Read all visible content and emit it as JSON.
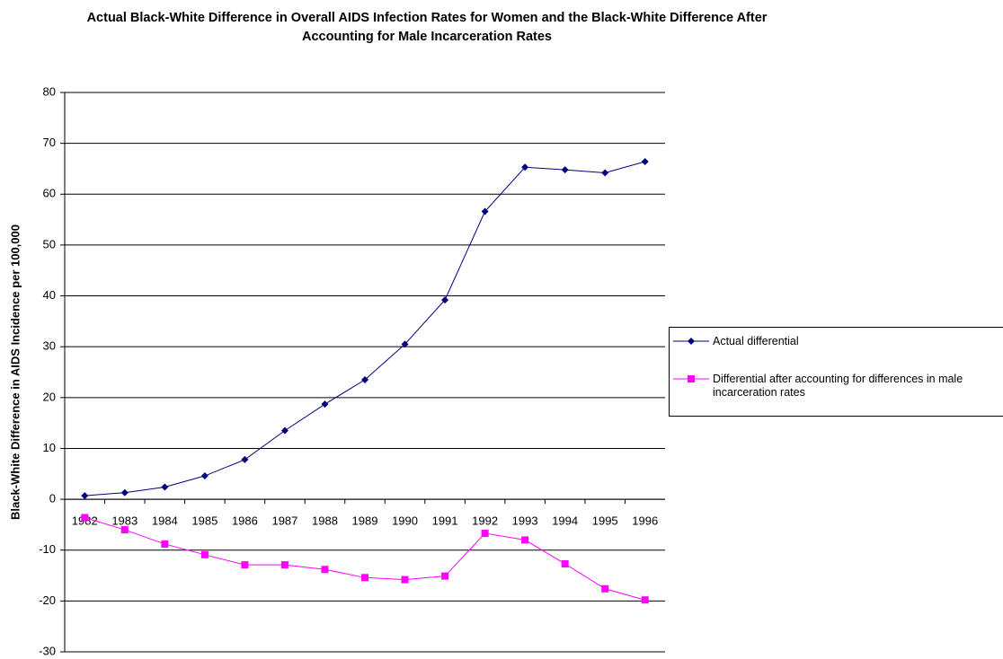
{
  "chart_data": {
    "type": "line",
    "title": "Actual Black-White Difference in Overall AIDS Infection Rates for Women and the Black-White Difference After Accounting for Male Incarceration Rates",
    "y_label": "Black-White Difference in AIDS Incidence per 100,000",
    "categories": [
      "1982",
      "1983",
      "1984",
      "1985",
      "1986",
      "1987",
      "1988",
      "1989",
      "1990",
      "1991",
      "1992",
      "1993",
      "1994",
      "1995",
      "1996"
    ],
    "series": [
      {
        "name": "Actual differential",
        "color": "#000080",
        "marker": "diamond",
        "values": [
          0.7,
          1.3,
          2.4,
          4.6,
          7.8,
          13.5,
          18.7,
          23.5,
          30.5,
          39.2,
          56.6,
          65.3,
          64.8,
          64.2,
          66.4
        ]
      },
      {
        "name": "Differential after accounting for differences in male incarceration rates",
        "color": "#ff00ff",
        "marker": "square",
        "values": [
          -3.6,
          -6.0,
          -8.8,
          -10.9,
          -12.9,
          -12.9,
          -13.8,
          -15.4,
          -15.8,
          -15.1,
          -6.7,
          -8.0,
          -12.7,
          -17.6,
          -19.8
        ]
      }
    ],
    "ylim": [
      -30,
      80
    ],
    "yticks": [
      -30,
      -20,
      -10,
      0,
      10,
      20,
      30,
      40,
      50,
      60,
      70,
      80
    ],
    "grid": true,
    "legend": "right"
  }
}
